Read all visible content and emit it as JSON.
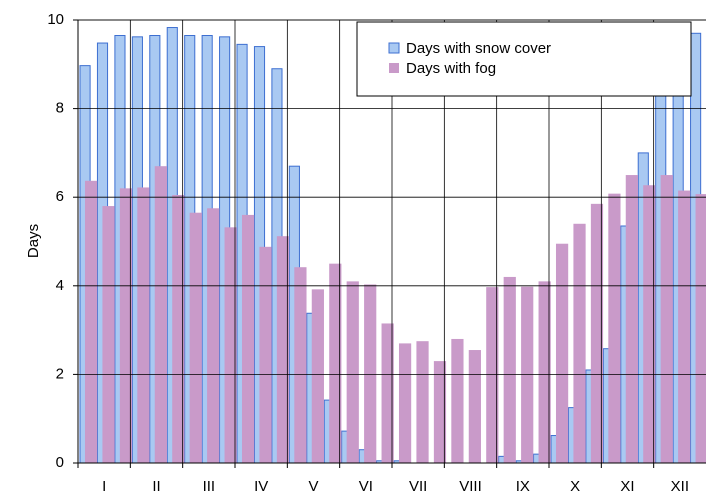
{
  "chart_data": {
    "type": "bar",
    "y_label": "Days",
    "months": [
      "I",
      "II",
      "III",
      "IV",
      "V",
      "VI",
      "VII",
      "VIII",
      "IX",
      "X",
      "XI",
      "XII"
    ],
    "series": [
      {
        "name": "Days with snow cover",
        "color": "#a9c9f2",
        "stroke": "#3d6fd1",
        "values": [
          8.97,
          9.48,
          9.65,
          9.62,
          9.65,
          9.83,
          9.65,
          9.65,
          9.62,
          9.45,
          9.4,
          8.9,
          6.7,
          3.38,
          1.42,
          0.72,
          0.3,
          0.05,
          0.05,
          0,
          0,
          0,
          0,
          0,
          0.15,
          0.05,
          0.2,
          0.62,
          1.25,
          2.1,
          2.58,
          5.35,
          7.0,
          8.32,
          9.0,
          9.7
        ]
      },
      {
        "name": "Days with fog",
        "color": "#c99ac9",
        "values": [
          6.37,
          5.8,
          6.2,
          6.22,
          6.7,
          6.05,
          5.65,
          5.75,
          5.32,
          5.6,
          4.88,
          5.12,
          4.42,
          3.92,
          4.5,
          4.1,
          4.03,
          3.15,
          2.7,
          2.75,
          2.3,
          2.8,
          2.55,
          3.97,
          4.2,
          3.98,
          4.1,
          4.95,
          5.4,
          5.85,
          6.08,
          6.5,
          6.27,
          6.5,
          6.15,
          6.07
        ]
      }
    ],
    "ylim": [
      0,
      10
    ],
    "yticks": [
      0,
      2,
      4,
      6,
      8,
      10
    ],
    "grid": true
  }
}
